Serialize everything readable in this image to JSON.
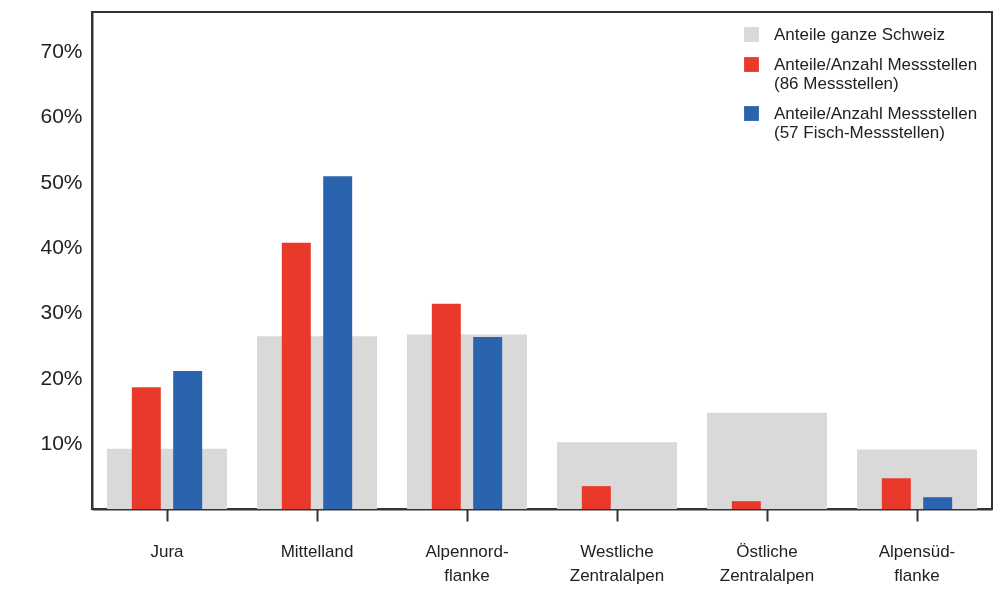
{
  "chart_data": {
    "type": "bar",
    "categories": [
      "Jura",
      "Mittelland",
      "Alpennord-\nflanke",
      "Westliche\nZentralalpen",
      "Östliche\nZentralalpen",
      "Alpensüd-\nflanke"
    ],
    "series": [
      {
        "name": "Anteile ganze Schweiz",
        "color": "#d9d9d9",
        "values": [
          9.2,
          26.4,
          26.7,
          10.2,
          14.7,
          9.1
        ]
      },
      {
        "name": "Anteile/Anzahl Messstellen\n(86 Messstellen)",
        "color": "#e8392b",
        "values": [
          18.6,
          40.7,
          31.4,
          3.5,
          1.2,
          4.7
        ]
      },
      {
        "name": "Anteile/Anzahl Messstellen\n(57 Fisch-Messstellen)",
        "color": "#2a63ae",
        "values": [
          21.1,
          50.9,
          26.3,
          0,
          0,
          1.8
        ]
      }
    ],
    "ylim": [
      0,
      76
    ],
    "yticks": [
      {
        "value": 10,
        "label": "10%"
      },
      {
        "value": 20,
        "label": "20%"
      },
      {
        "value": 30,
        "label": "30%"
      },
      {
        "value": 40,
        "label": "40%"
      },
      {
        "value": 50,
        "label": "50%"
      },
      {
        "value": 60,
        "label": "60%"
      },
      {
        "value": 70,
        "label": "70%"
      }
    ],
    "grid": false,
    "legend": "top right"
  }
}
